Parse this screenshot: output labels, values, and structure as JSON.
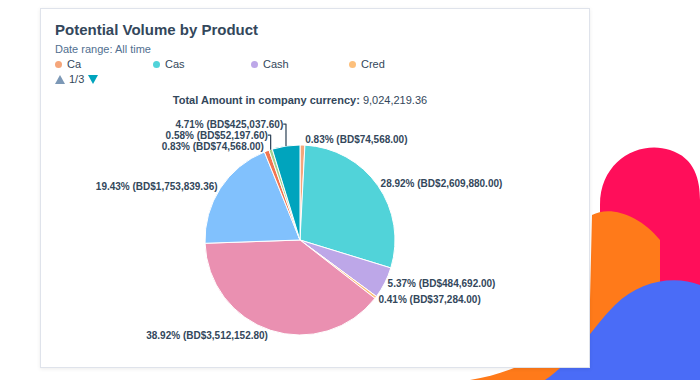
{
  "chart_data": {
    "type": "pie",
    "title": "Potential Volume by Product",
    "subtitle": "Date range: All time",
    "legend": "top",
    "legend_page": "1/3",
    "total": {
      "label": "Total Amount in company currency:",
      "value": 9024219.36
    },
    "categories": [
      "Ca",
      "Cas",
      "Cash",
      "Cred",
      null,
      null,
      null,
      null,
      null
    ],
    "values": [
      74568.0,
      2609880.0,
      484692.0,
      37284.0,
      3512152.8,
      1753839.36,
      74568.0,
      52197.6,
      425037.6
    ],
    "value_labels": [
      "0.83% (BD$74,568.00)",
      "28.92% (BD$2,609,880.00)",
      "5.37% (BD$484,692.00)",
      "0.41% (BD$37,284.00)",
      "38.92% (BD$3,512,152.80)",
      "19.43% (BD$1,753,839.36)",
      "0.83% (BD$74,568.00)",
      "0.58% (BD$52,197.60)",
      "4.71% (BD$425,037.60)"
    ],
    "colors": [
      "#f5a67b",
      "#51d3d9",
      "#bda7e8",
      "#fdc07c",
      "#ea90b1",
      "#81c1fd",
      "#f2754f",
      "#a2d28f",
      "#00a4bd"
    ],
    "data_labels": true
  }
}
